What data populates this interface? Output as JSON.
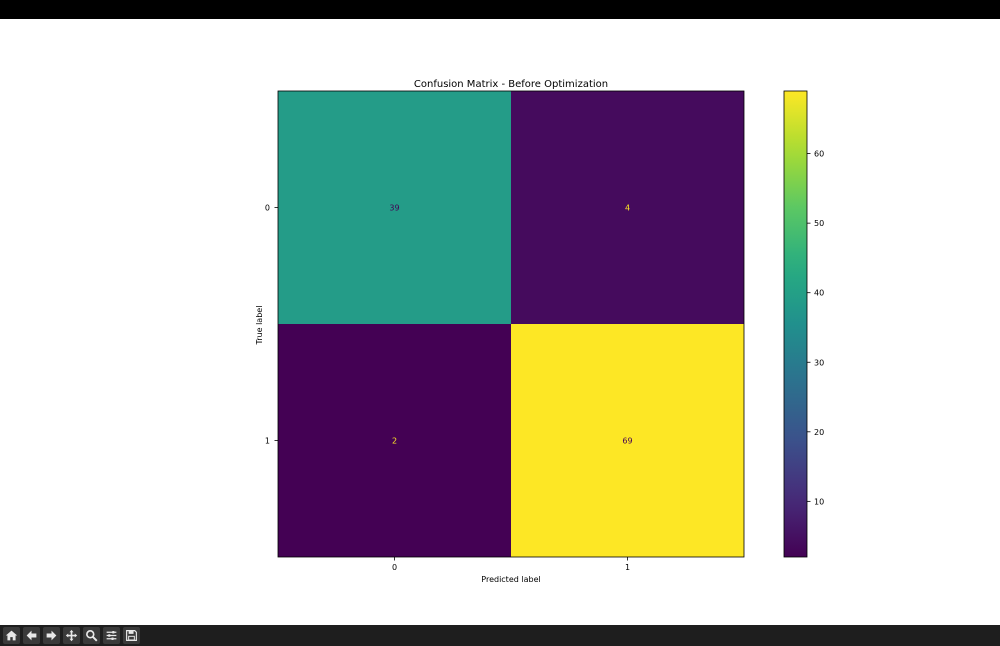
{
  "window": {
    "toolbar": [
      {
        "name": "home-icon",
        "title": "Home"
      },
      {
        "name": "back-icon",
        "title": "Back"
      },
      {
        "name": "forward-icon",
        "title": "Forward"
      },
      {
        "name": "pan-icon",
        "title": "Pan"
      },
      {
        "name": "zoom-icon",
        "title": "Zoom"
      },
      {
        "name": "configure-subplots-icon",
        "title": "Configure subplots"
      },
      {
        "name": "save-icon",
        "title": "Save"
      }
    ]
  },
  "chart_data": {
    "type": "heatmap",
    "title": "Confusion Matrix - Before Optimization",
    "xlabel": "Predicted label",
    "ylabel": "True label",
    "x_categories": [
      "0",
      "1"
    ],
    "y_categories": [
      "0",
      "1"
    ],
    "values": [
      [
        39,
        4
      ],
      [
        2,
        69
      ]
    ],
    "colormap": "viridis",
    "colorbar": {
      "vmin": 2,
      "vmax": 69,
      "ticks": [
        10,
        20,
        30,
        40,
        50,
        60
      ]
    },
    "colors": {
      "low": "#440154",
      "high": "#fde725"
    }
  }
}
